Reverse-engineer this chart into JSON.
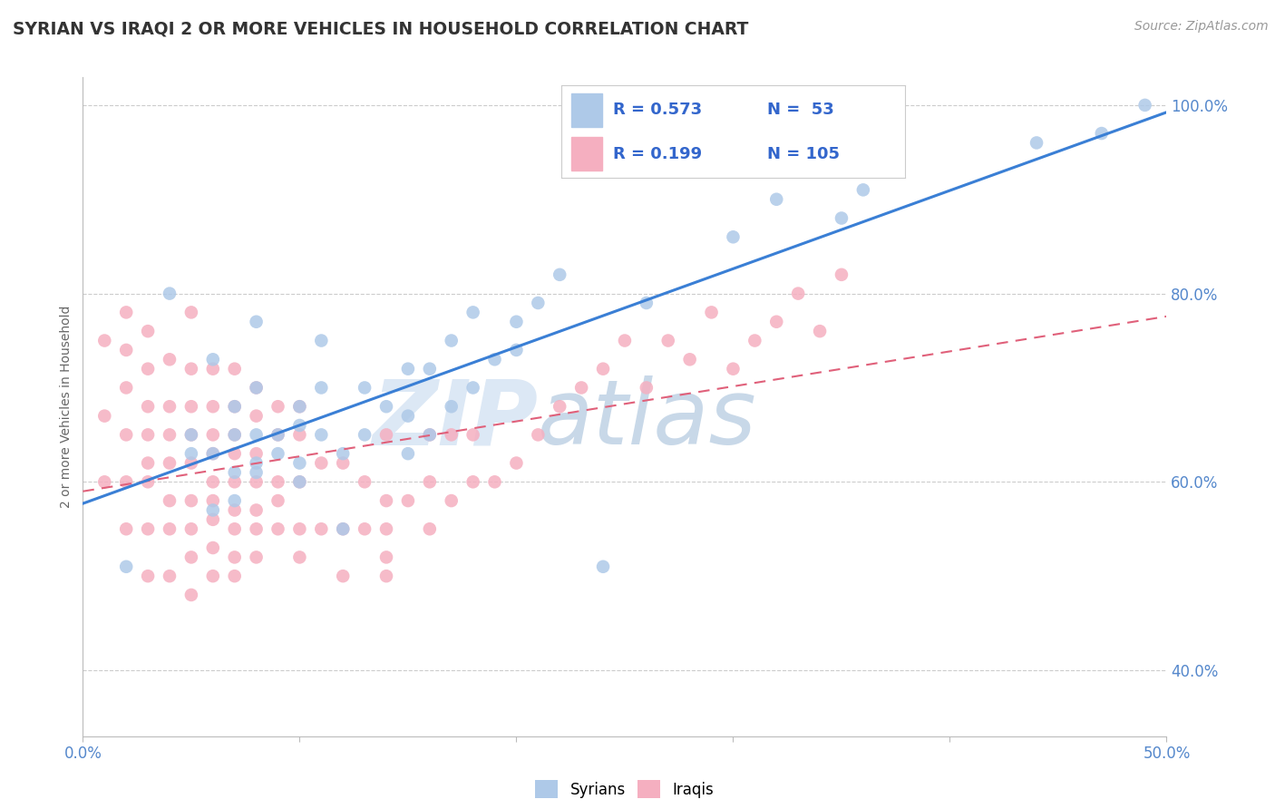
{
  "title": "SYRIAN VS IRAQI 2 OR MORE VEHICLES IN HOUSEHOLD CORRELATION CHART",
  "source": "Source: ZipAtlas.com",
  "ylabel": "2 or more Vehicles in Household",
  "xlim": [
    0.0,
    0.5
  ],
  "ylim": [
    0.33,
    1.03
  ],
  "ytick_labels": [
    "40.0%",
    "60.0%",
    "80.0%",
    "100.0%"
  ],
  "ytick_values": [
    0.4,
    0.6,
    0.8,
    1.0
  ],
  "legend_R_syrian": "R = 0.573",
  "legend_N_syrian": "N =  53",
  "legend_R_iraqi": "R = 0.199",
  "legend_N_iraqi": "N = 105",
  "color_syrian": "#aec9e8",
  "color_iraqi": "#f5afc0",
  "color_syrian_line": "#3a7fd5",
  "color_iraqi_line": "#e0607a",
  "watermark_color_zip": "#dce8f5",
  "watermark_color_atlas": "#c8d8e8",
  "syrian_x": [
    0.02,
    0.04,
    0.05,
    0.05,
    0.06,
    0.06,
    0.06,
    0.07,
    0.07,
    0.07,
    0.07,
    0.08,
    0.08,
    0.08,
    0.08,
    0.08,
    0.09,
    0.09,
    0.1,
    0.1,
    0.1,
    0.1,
    0.11,
    0.11,
    0.11,
    0.12,
    0.12,
    0.13,
    0.13,
    0.14,
    0.15,
    0.15,
    0.15,
    0.16,
    0.16,
    0.17,
    0.17,
    0.18,
    0.18,
    0.19,
    0.2,
    0.21,
    0.22,
    0.24,
    0.26,
    0.3,
    0.32,
    0.35,
    0.36,
    0.44,
    0.47,
    0.49,
    0.2
  ],
  "syrian_y": [
    0.51,
    0.8,
    0.63,
    0.65,
    0.57,
    0.63,
    0.73,
    0.58,
    0.61,
    0.65,
    0.68,
    0.61,
    0.62,
    0.65,
    0.7,
    0.77,
    0.63,
    0.65,
    0.6,
    0.62,
    0.66,
    0.68,
    0.65,
    0.7,
    0.75,
    0.55,
    0.63,
    0.65,
    0.7,
    0.68,
    0.63,
    0.67,
    0.72,
    0.65,
    0.72,
    0.68,
    0.75,
    0.7,
    0.78,
    0.73,
    0.77,
    0.79,
    0.82,
    0.51,
    0.79,
    0.86,
    0.9,
    0.88,
    0.91,
    0.96,
    0.97,
    1.0,
    0.74
  ],
  "iraqi_x": [
    0.01,
    0.01,
    0.01,
    0.02,
    0.02,
    0.02,
    0.02,
    0.02,
    0.02,
    0.03,
    0.03,
    0.03,
    0.03,
    0.03,
    0.03,
    0.03,
    0.03,
    0.04,
    0.04,
    0.04,
    0.04,
    0.04,
    0.04,
    0.04,
    0.05,
    0.05,
    0.05,
    0.05,
    0.05,
    0.05,
    0.05,
    0.05,
    0.05,
    0.06,
    0.06,
    0.06,
    0.06,
    0.06,
    0.06,
    0.06,
    0.06,
    0.06,
    0.07,
    0.07,
    0.07,
    0.07,
    0.07,
    0.07,
    0.07,
    0.07,
    0.07,
    0.08,
    0.08,
    0.08,
    0.08,
    0.08,
    0.08,
    0.08,
    0.09,
    0.09,
    0.09,
    0.09,
    0.09,
    0.1,
    0.1,
    0.1,
    0.1,
    0.1,
    0.11,
    0.11,
    0.12,
    0.12,
    0.12,
    0.13,
    0.13,
    0.14,
    0.14,
    0.14,
    0.14,
    0.14,
    0.15,
    0.16,
    0.16,
    0.16,
    0.17,
    0.17,
    0.18,
    0.18,
    0.19,
    0.2,
    0.21,
    0.22,
    0.23,
    0.24,
    0.25,
    0.26,
    0.27,
    0.28,
    0.29,
    0.3,
    0.31,
    0.32,
    0.33,
    0.34,
    0.35
  ],
  "iraqi_y": [
    0.6,
    0.67,
    0.75,
    0.55,
    0.6,
    0.65,
    0.7,
    0.74,
    0.78,
    0.5,
    0.55,
    0.6,
    0.62,
    0.65,
    0.68,
    0.72,
    0.76,
    0.5,
    0.55,
    0.58,
    0.62,
    0.65,
    0.68,
    0.73,
    0.48,
    0.52,
    0.55,
    0.58,
    0.62,
    0.65,
    0.68,
    0.72,
    0.78,
    0.5,
    0.53,
    0.56,
    0.58,
    0.6,
    0.63,
    0.65,
    0.68,
    0.72,
    0.5,
    0.52,
    0.55,
    0.57,
    0.6,
    0.63,
    0.65,
    0.68,
    0.72,
    0.52,
    0.55,
    0.57,
    0.6,
    0.63,
    0.67,
    0.7,
    0.55,
    0.58,
    0.6,
    0.65,
    0.68,
    0.52,
    0.55,
    0.6,
    0.65,
    0.68,
    0.55,
    0.62,
    0.5,
    0.55,
    0.62,
    0.55,
    0.6,
    0.5,
    0.52,
    0.55,
    0.58,
    0.65,
    0.58,
    0.55,
    0.6,
    0.65,
    0.58,
    0.65,
    0.6,
    0.65,
    0.6,
    0.62,
    0.65,
    0.68,
    0.7,
    0.72,
    0.75,
    0.7,
    0.75,
    0.73,
    0.78,
    0.72,
    0.75,
    0.77,
    0.8,
    0.76,
    0.82
  ]
}
